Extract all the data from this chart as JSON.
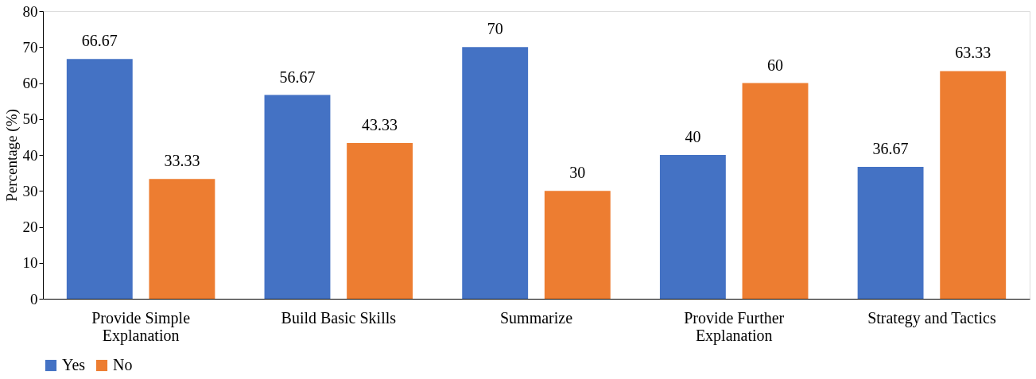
{
  "chart_data": {
    "type": "bar",
    "ylabel": "Percentage (%)",
    "categories": [
      "Provide Simple Explanation",
      "Build Basic Skills",
      "Summarize",
      "Provide Further Explanation",
      "Strategy and Tactics"
    ],
    "series": [
      {
        "name": "Yes",
        "color": "#4472c4",
        "values": [
          66.67,
          56.67,
          70,
          40,
          36.67
        ]
      },
      {
        "name": "No",
        "color": "#ed7d31",
        "values": [
          33.33,
          43.33,
          30,
          60,
          63.33
        ]
      }
    ],
    "ylim": [
      0,
      80
    ],
    "yticks": [
      0,
      10,
      20,
      30,
      40,
      50,
      60,
      70,
      80
    ],
    "grid": false,
    "legend": "bottom",
    "data_labels": true
  }
}
